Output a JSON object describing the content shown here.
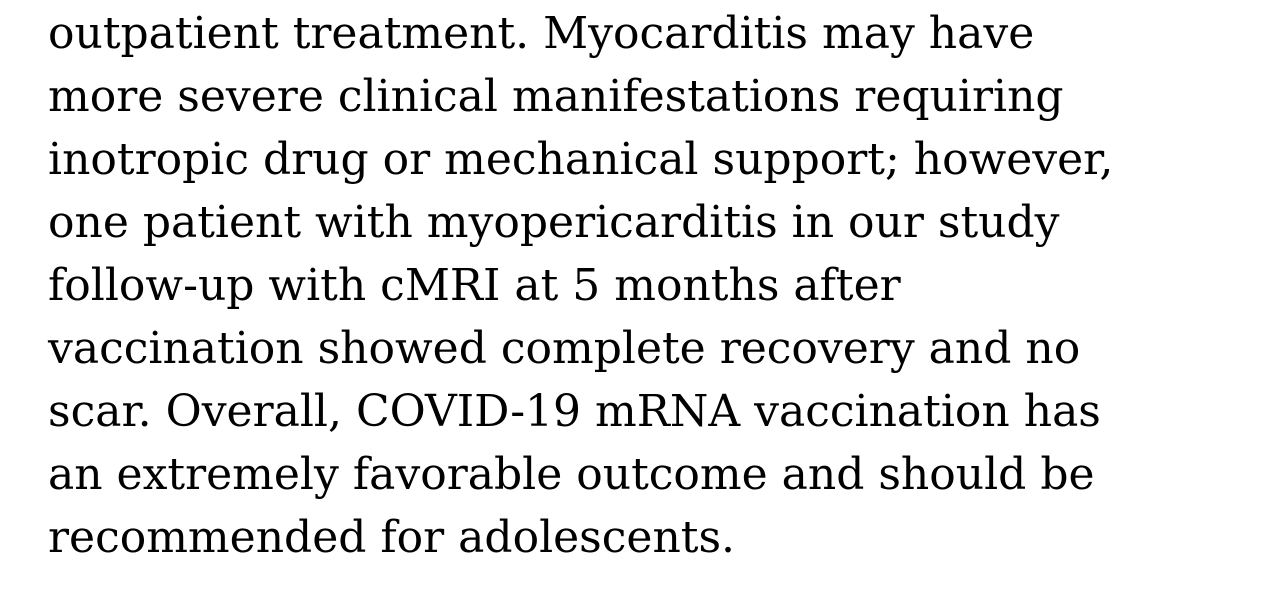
{
  "paragraph": {
    "lines": [
      "outpatient treatment. Myocarditis may have",
      "more severe clinical manifestations requiring",
      "inotropic drug or mechanical support; however,",
      "one patient with myopericarditis in our study",
      "follow-up with cMRI at 5 months after",
      "vaccination showed complete recovery and no",
      "scar. Overall, COVID-19 mRNA vaccination has",
      "an extremely favorable outcome and should be",
      "recommended for adolescents."
    ]
  }
}
